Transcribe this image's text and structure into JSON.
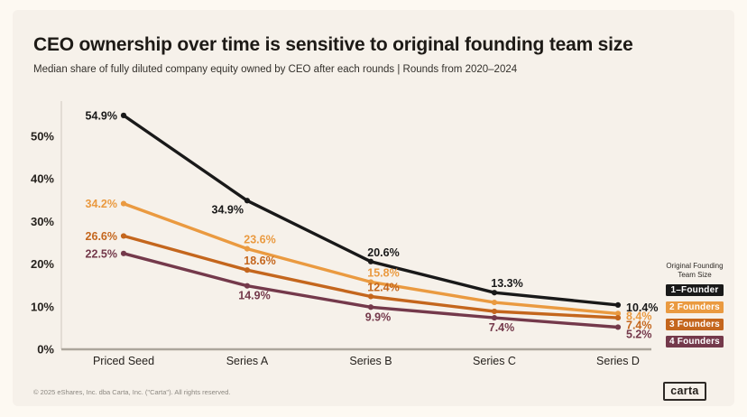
{
  "page": {
    "background": "#FDF9F2",
    "card_background": "#F6F1EA",
    "axis_line_color": "#ACA69C",
    "y_axis_line_color": "#DCD6CC",
    "tick_text_color": "#26221E"
  },
  "header": {
    "title": "CEO ownership over time is sensitive to original founding team size",
    "subtitle": "Median share of fully diluted company equity owned by CEO after each rounds | Rounds from 2020–2024"
  },
  "legend": {
    "title_line1": "Original Founding",
    "title_line2": "Team Size"
  },
  "footer": {
    "copyright": "© 2025 eShares, Inc. dba Carta, Inc. (\"Carta\"). All rights reserved.",
    "logo_text": "carta"
  },
  "chart_data": {
    "type": "line",
    "title": "CEO ownership over time is sensitive to original founding team size",
    "categories": [
      "Priced Seed",
      "Series A",
      "Series B",
      "Series C",
      "Series D"
    ],
    "y_ticks": [
      "0%",
      "10%",
      "20%",
      "30%",
      "40%",
      "50%"
    ],
    "ylim": [
      0,
      57
    ],
    "grid": false,
    "legend_position": "right",
    "series": [
      {
        "name": "1–Founder",
        "color": "#191919",
        "values": [
          54.9,
          34.9,
          20.6,
          13.3,
          10.4
        ],
        "labels": [
          "54.9%",
          "34.9%",
          "20.6%",
          "13.3%",
          "10.4%"
        ],
        "label_pos": [
          "left",
          "left-below",
          "above",
          "above",
          "right"
        ]
      },
      {
        "name": "2 Founders",
        "color": "#EA9A40",
        "values": [
          34.2,
          23.6,
          15.8,
          11.0,
          8.4
        ],
        "labels": [
          "34.2%",
          "23.6%",
          "15.8%",
          "",
          "8.4%"
        ],
        "label_pos": [
          "left",
          "above",
          "above",
          "none",
          "right"
        ]
      },
      {
        "name": "3 Founders",
        "color": "#C4661D",
        "values": [
          26.6,
          18.6,
          12.4,
          8.9,
          7.4
        ],
        "labels": [
          "26.6%",
          "18.6%",
          "12.4%",
          "",
          "7.4%"
        ],
        "label_pos": [
          "left",
          "above",
          "above",
          "none",
          "right"
        ]
      },
      {
        "name": "4 Founders",
        "color": "#74394B",
        "values": [
          22.5,
          14.9,
          9.9,
          7.4,
          5.2
        ],
        "labels": [
          "22.5%",
          "14.9%",
          "9.9%",
          "7.4%",
          "5.2%"
        ],
        "label_pos": [
          "left",
          "below",
          "below",
          "below",
          "right"
        ]
      }
    ]
  }
}
